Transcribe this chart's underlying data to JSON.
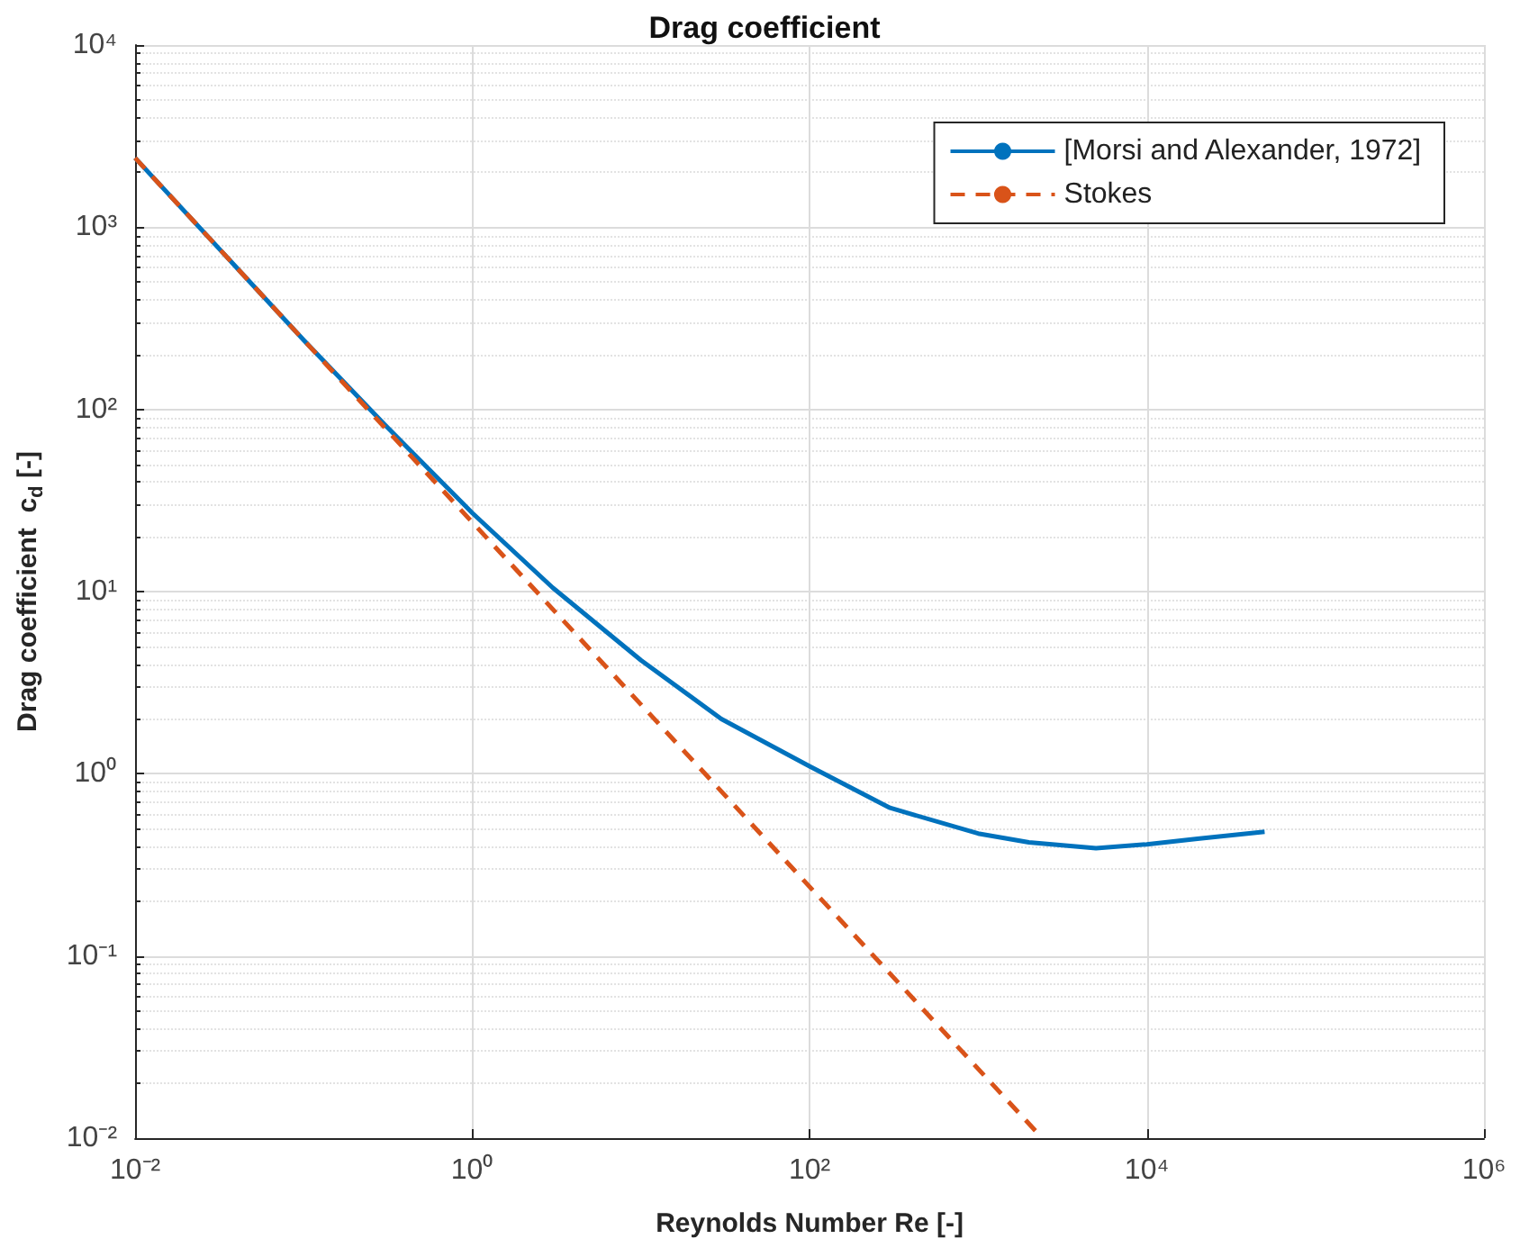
{
  "chart_data": {
    "type": "line",
    "title": "Drag coefficient",
    "xlabel": "Reynolds Number Re [-]",
    "ylabel": "Drag coefficient  c$_{d}$ [-]",
    "log": "xy",
    "grid": true,
    "legend": "top right",
    "marker": "none",
    "xlim": [
      0.01,
      1000000
    ],
    "ylim": [
      0.01,
      10000
    ],
    "xticks": [
      {
        "value": 0.01,
        "label": "10⁻²"
      },
      {
        "value": 1,
        "label": "10⁰"
      },
      {
        "value": 100,
        "label": "10²"
      },
      {
        "value": 10000,
        "label": "10⁴"
      },
      {
        "value": 1000000,
        "label": "10⁶"
      }
    ],
    "yticks": [
      {
        "value": 0.01,
        "label": "10⁻²"
      },
      {
        "value": 0.1,
        "label": "10⁻¹"
      },
      {
        "value": 1,
        "label": "10⁰"
      },
      {
        "value": 10,
        "label": "10¹"
      },
      {
        "value": 100,
        "label": "10²"
      },
      {
        "value": 1000,
        "label": "10³"
      },
      {
        "value": 10000,
        "label": "10⁴"
      }
    ],
    "series": [
      {
        "name": "[Morsi and Alexander, 1972]",
        "color": "#0072bd",
        "line_style": "solid",
        "x": [
          0.01,
          0.1,
          0.3,
          1,
          3,
          10,
          30,
          100,
          300,
          1000,
          2000,
          5000,
          10000,
          20000,
          50000
        ],
        "values": [
          2400,
          240,
          83,
          27,
          10.5,
          4.2,
          2.0,
          1.1,
          0.65,
          0.47,
          0.42,
          0.39,
          0.41,
          0.44,
          0.48
        ]
      },
      {
        "name": "Stokes",
        "color": "#d95319",
        "line_style": "dashed",
        "x": [
          0.01,
          2400
        ],
        "values": [
          2400,
          0.01
        ]
      }
    ]
  }
}
